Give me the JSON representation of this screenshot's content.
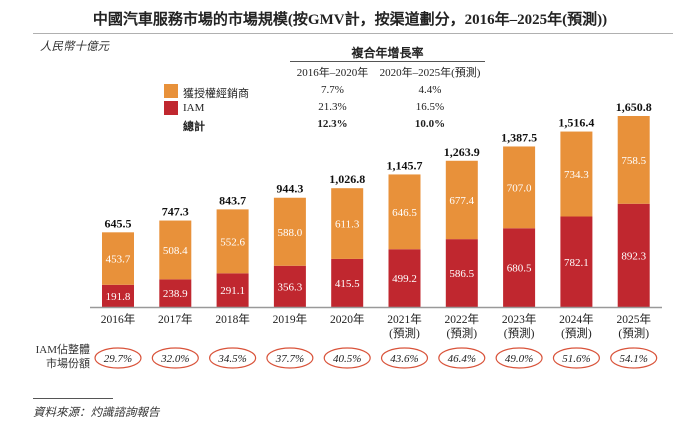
{
  "title": "中國汽車服務市場的市場規模(按GMV計，按渠道劃分，2016年–2025年(預測))",
  "unit_label": "人民幣十億元",
  "cagr_table": {
    "header": "複合年增長率",
    "columns": [
      "2016年–2020年",
      "2020年–2025年(預測)"
    ],
    "rows": [
      {
        "label": "獲授權經銷商",
        "values": [
          "7.7%",
          "4.4%"
        ],
        "bold": false
      },
      {
        "label": "IAM",
        "values": [
          "21.3%",
          "16.5%"
        ],
        "bold": false
      },
      {
        "label": "總計",
        "values": [
          "12.3%",
          "10.0%"
        ],
        "bold": true
      }
    ]
  },
  "colors": {
    "authorized_dealer": "#e8913a",
    "iam": "#c0272f",
    "oval": "#d9533a",
    "axis": "#999999"
  },
  "share_label_line1": "IAM佔整體",
  "share_label_line2": "市場份額",
  "source": "資料來源：灼識諮詢報告",
  "chart_data": {
    "type": "bar",
    "stacked": true,
    "title": "中國汽車服務市場的市場規模(按GMV計，按渠道劃分，2016年–2025年(預測))",
    "ylabel": "人民幣十億元",
    "xlabel": "",
    "ylim": [
      0,
      1650.8
    ],
    "grid": false,
    "legend": "top-center",
    "categories": [
      "2016年",
      "2017年",
      "2018年",
      "2019年",
      "2020年",
      "2021年",
      "2022年",
      "2023年",
      "2024年",
      "2025年"
    ],
    "category_sublabels": [
      "",
      "",
      "",
      "",
      "",
      "(預測)",
      "(預測)",
      "(預測)",
      "(預測)",
      "(預測)"
    ],
    "series": [
      {
        "name": "IAM",
        "color": "#c0272f",
        "values": [
          191.8,
          238.9,
          291.1,
          356.3,
          415.5,
          499.2,
          586.5,
          680.5,
          782.1,
          892.3
        ],
        "labels": [
          "191.8",
          "238.9",
          "291.1",
          "356.3",
          "415.5",
          "499.2",
          "586.5",
          "680.5",
          "782.1",
          "892.3"
        ]
      },
      {
        "name": "獲授權經銷商",
        "color": "#e8913a",
        "values": [
          453.7,
          508.4,
          552.6,
          588.0,
          611.3,
          646.5,
          677.4,
          707.0,
          734.3,
          758.5
        ],
        "labels": [
          "453.7",
          "508.4",
          "552.6",
          "588.0",
          "611.3",
          "646.5",
          "677.4",
          "707.0",
          "734.3",
          "758.5"
        ]
      }
    ],
    "totals": [
      645.5,
      747.3,
      843.7,
      944.3,
      1026.8,
      1145.7,
      1263.9,
      1387.5,
      1516.4,
      1650.8
    ],
    "total_labels": [
      "645.5",
      "747.3",
      "843.7",
      "944.3",
      "1,026.8",
      "1,145.7",
      "1,263.9",
      "1,387.5",
      "1,516.4",
      "1,650.8"
    ],
    "iam_share": [
      "29.7%",
      "32.0%",
      "34.5%",
      "37.7%",
      "40.5%",
      "43.6%",
      "46.4%",
      "49.0%",
      "51.6%",
      "54.1%"
    ]
  }
}
